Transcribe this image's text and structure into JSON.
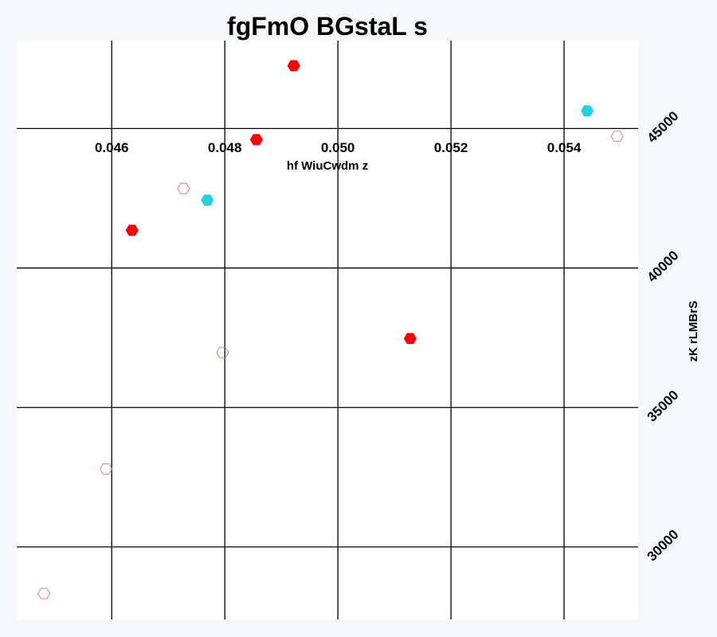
{
  "chart_data": {
    "type": "scatter",
    "title": "fgFmO BGstaL s",
    "xlabel": "hf WiuCwdm z",
    "ylabel": "zK rLMBrS",
    "xlim": [
      0.04432,
      0.05531
    ],
    "ylim": [
      27400,
      48150
    ],
    "x_ticks": [
      "0.046",
      "0.048",
      "0.050",
      "0.052",
      "0.054"
    ],
    "y_ticks": [
      "30000",
      "35000",
      "40000",
      "45000"
    ],
    "grid": true,
    "colors": {
      "red": "#ff0000",
      "cyan": "#22d3dc",
      "outline_red": "#e8716a"
    },
    "series": [
      {
        "marker": "filled-hexagon",
        "color": "#ff0000",
        "points": [
          {
            "x": 0.04922,
            "y": 47250
          },
          {
            "x": 0.04856,
            "y": 44600
          },
          {
            "x": 0.04636,
            "y": 41350
          },
          {
            "x": 0.05128,
            "y": 37470
          }
        ]
      },
      {
        "marker": "filled-hexagon",
        "color": "#22d3dc",
        "points": [
          {
            "x": 0.05441,
            "y": 45630
          },
          {
            "x": 0.04769,
            "y": 42430
          }
        ]
      },
      {
        "marker": "hollow-hexagon",
        "color": "#e8716a",
        "points": [
          {
            "x": 0.05494,
            "y": 44720
          },
          {
            "x": 0.04727,
            "y": 42850
          },
          {
            "x": 0.04796,
            "y": 36970
          },
          {
            "x": 0.0459,
            "y": 32800
          },
          {
            "x": 0.0448,
            "y": 28330
          }
        ]
      }
    ]
  }
}
